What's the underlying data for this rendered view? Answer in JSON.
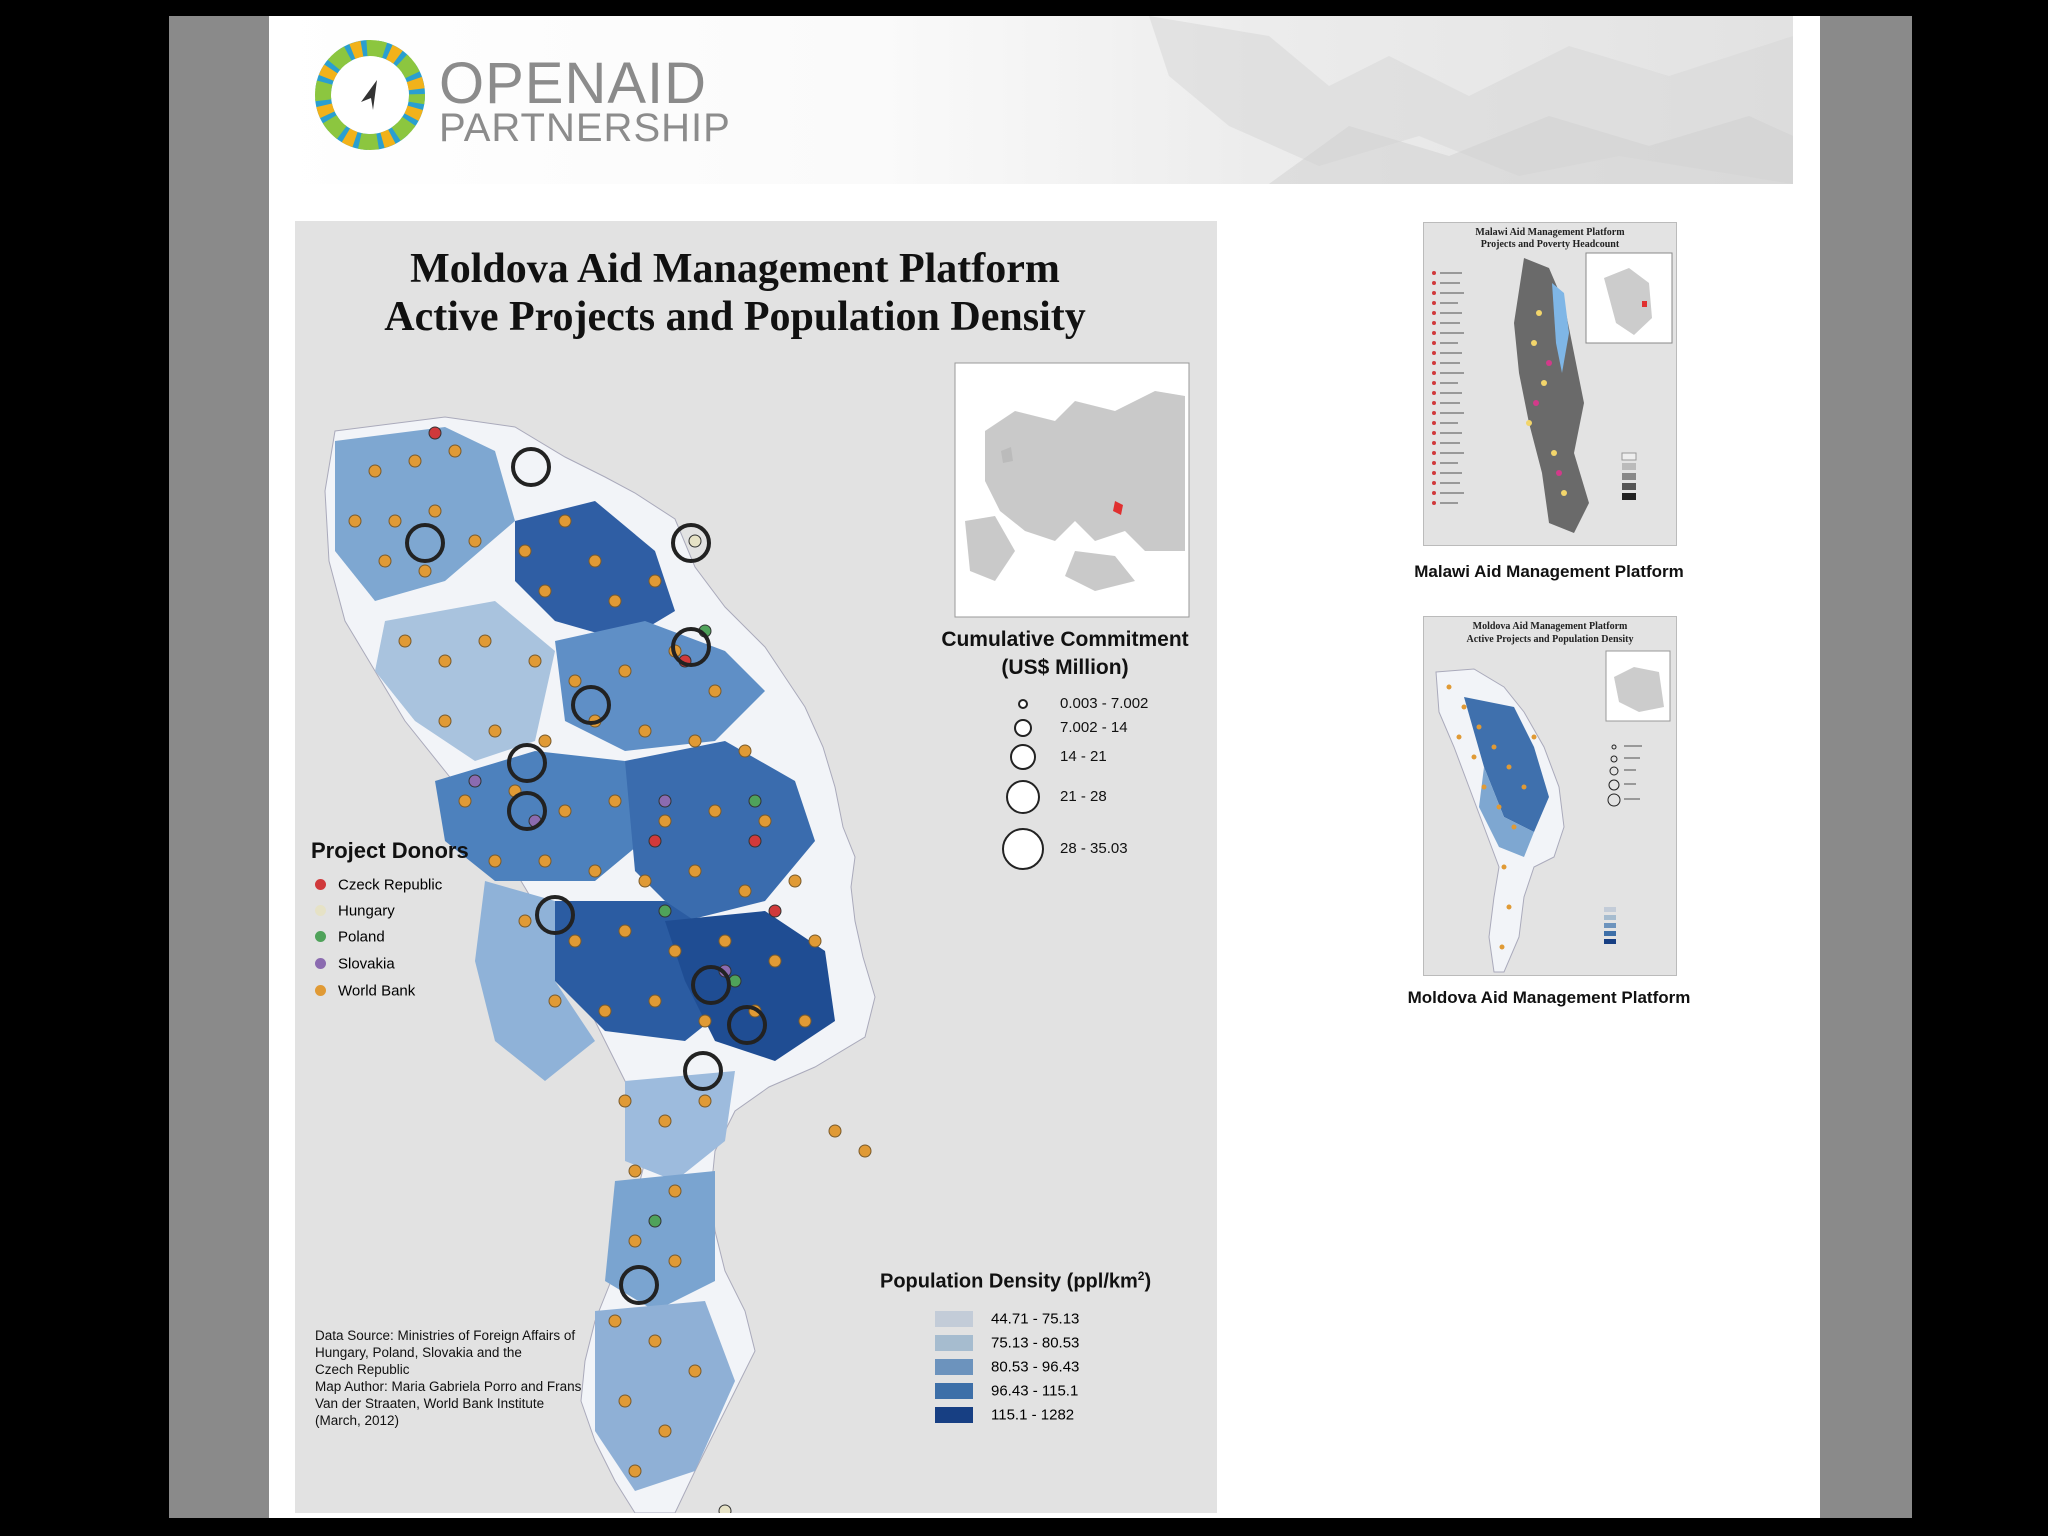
{
  "logo": {
    "line1_light": "OPEN",
    "line1_bold": "AID",
    "line2": "PARTNERSHIP"
  },
  "main_map": {
    "title_line1": "Moldova Aid Management Platform",
    "title_line2": "Active Projects and Population Density",
    "commitment_legend": {
      "title_line1": "Cumulative Commitment",
      "title_line2": "(US$ Million)",
      "classes": [
        "0.003 - 7.002",
        "7.002 - 14",
        "14 - 21",
        "21 - 28",
        "28 - 35.03"
      ]
    },
    "donors_legend": {
      "title": "Project Donors",
      "items": [
        {
          "label": "Czeck Republic",
          "color": "#d0393b"
        },
        {
          "label": "Hungary",
          "color": "#e6e2c6"
        },
        {
          "label": "Poland",
          "color": "#4fa25a"
        },
        {
          "label": "Slovakia",
          "color": "#8b6bb0"
        },
        {
          "label": "World Bank",
          "color": "#e09a35"
        }
      ]
    },
    "density_legend": {
      "title": "Population Density (ppl/km",
      "title_sup": "2",
      "title_end": ")",
      "classes": [
        {
          "label": "44.71 - 75.13",
          "color": "#c3ccd8"
        },
        {
          "label": "75.13 - 80.53",
          "color": "#a6bccf"
        },
        {
          "label": "80.53 - 96.43",
          "color": "#6c93bd"
        },
        {
          "label": "96.43 - 115.1",
          "color": "#3d6fa8"
        },
        {
          "label": "115.1 - 1282",
          "color": "#173f83"
        }
      ]
    },
    "source_lines": [
      "Data Source: Ministries of Foreign Affairs of",
      "Hungary, Poland, Slovakia and the",
      "Czech Republic",
      "Map Author: Maria Gabriela Porro and Frans",
      "Van der Straaten, World Bank Institute",
      "(March, 2012)"
    ]
  },
  "thumbnails": [
    {
      "caption": "Malawi Aid Management Platform",
      "title_line1": "Malawi Aid Management Platform",
      "title_line2": "Projects and Poverty Headcount"
    },
    {
      "caption": "Moldova Aid Management Platform",
      "title_line1": "Moldova Aid Management Platform",
      "title_line2": "Active Projects and Population Density"
    }
  ]
}
